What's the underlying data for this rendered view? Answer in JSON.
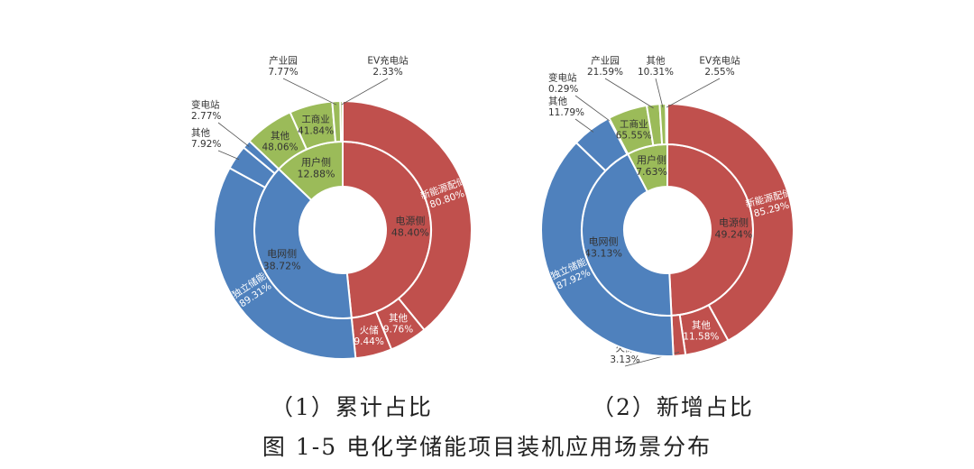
{
  "colors": {
    "source": "#c0504d",
    "grid": "#4f81bd",
    "user": "#9bbb59",
    "divider": "#ffffff",
    "label_dark": "#333333",
    "label_light": "#ffffff",
    "leader": "#555555"
  },
  "chart_data": [
    {
      "type": "sunburst",
      "caption": "（1）累计占比",
      "inner": [
        {
          "name": "电源侧",
          "value": 48.4,
          "label": "48.40%",
          "color_key": "source"
        },
        {
          "name": "电网侧",
          "value": 38.72,
          "label": "38.72%",
          "color_key": "grid"
        },
        {
          "name": "用户侧",
          "value": 12.88,
          "label": "12.88%",
          "color_key": "user"
        }
      ],
      "outer": [
        {
          "name": "新能源配储",
          "value": 80.8,
          "label": "80.80%",
          "parent": 0,
          "label_mode": "inside"
        },
        {
          "name": "其他",
          "value": 9.76,
          "label": "9.76%",
          "parent": 0,
          "label_mode": "inside"
        },
        {
          "name": "火储",
          "value": 9.44,
          "label": "9.44%",
          "parent": 0,
          "label_mode": "inside"
        },
        {
          "name": "独立储能",
          "value": 89.31,
          "label": "89.31%",
          "parent": 1,
          "label_mode": "inside"
        },
        {
          "name": "其他",
          "value": 7.92,
          "label": "7.92%",
          "parent": 1,
          "label_mode": "outside"
        },
        {
          "name": "变电站",
          "value": 2.77,
          "label": "2.77%",
          "parent": 1,
          "label_mode": "outside"
        },
        {
          "name": "其他",
          "value": 48.06,
          "label": "48.06%",
          "parent": 2,
          "label_mode": "inside"
        },
        {
          "name": "工商业",
          "value": 41.84,
          "label": "41.84%",
          "parent": 2,
          "label_mode": "inside"
        },
        {
          "name": "产业园",
          "value": 7.77,
          "label": "7.77%",
          "parent": 2,
          "label_mode": "outside"
        },
        {
          "name": "EV充电站",
          "value": 2.33,
          "label": "2.33%",
          "parent": 2,
          "label_mode": "outside"
        }
      ]
    },
    {
      "type": "sunburst",
      "caption": "（2）新增占比",
      "inner": [
        {
          "name": "电源侧",
          "value": 49.24,
          "label": "49.24%",
          "color_key": "source"
        },
        {
          "name": "电网侧",
          "value": 43.13,
          "label": "43.13%",
          "color_key": "grid"
        },
        {
          "name": "用户侧",
          "value": 7.63,
          "label": "7.63%",
          "color_key": "user"
        }
      ],
      "outer": [
        {
          "name": "新能源配储",
          "value": 85.29,
          "label": "85.29%",
          "parent": 0,
          "label_mode": "inside"
        },
        {
          "name": "其他",
          "value": 11.58,
          "label": "11.58%",
          "parent": 0,
          "label_mode": "inside"
        },
        {
          "name": "火储",
          "value": 3.13,
          "label": "3.13%",
          "parent": 0,
          "label_mode": "outside"
        },
        {
          "name": "独立储能",
          "value": 87.92,
          "label": "87.92%",
          "parent": 1,
          "label_mode": "inside"
        },
        {
          "name": "其他",
          "value": 11.79,
          "label": "11.79%",
          "parent": 1,
          "label_mode": "outside"
        },
        {
          "name": "变电站",
          "value": 0.29,
          "label": "0.29%",
          "parent": 1,
          "label_mode": "outside"
        },
        {
          "name": "工商业",
          "value": 65.55,
          "label": "65.55%",
          "parent": 2,
          "label_mode": "inside"
        },
        {
          "name": "产业园",
          "value": 21.59,
          "label": "21.59%",
          "parent": 2,
          "label_mode": "outside"
        },
        {
          "name": "其他",
          "value": 10.31,
          "label": "10.31%",
          "parent": 2,
          "label_mode": "outside"
        },
        {
          "name": "EV充电站",
          "value": 2.55,
          "label": "2.55%",
          "parent": 2,
          "label_mode": "outside"
        }
      ]
    }
  ],
  "figure_caption": "图 1-5  电化学储能项目装机应用场景分布"
}
